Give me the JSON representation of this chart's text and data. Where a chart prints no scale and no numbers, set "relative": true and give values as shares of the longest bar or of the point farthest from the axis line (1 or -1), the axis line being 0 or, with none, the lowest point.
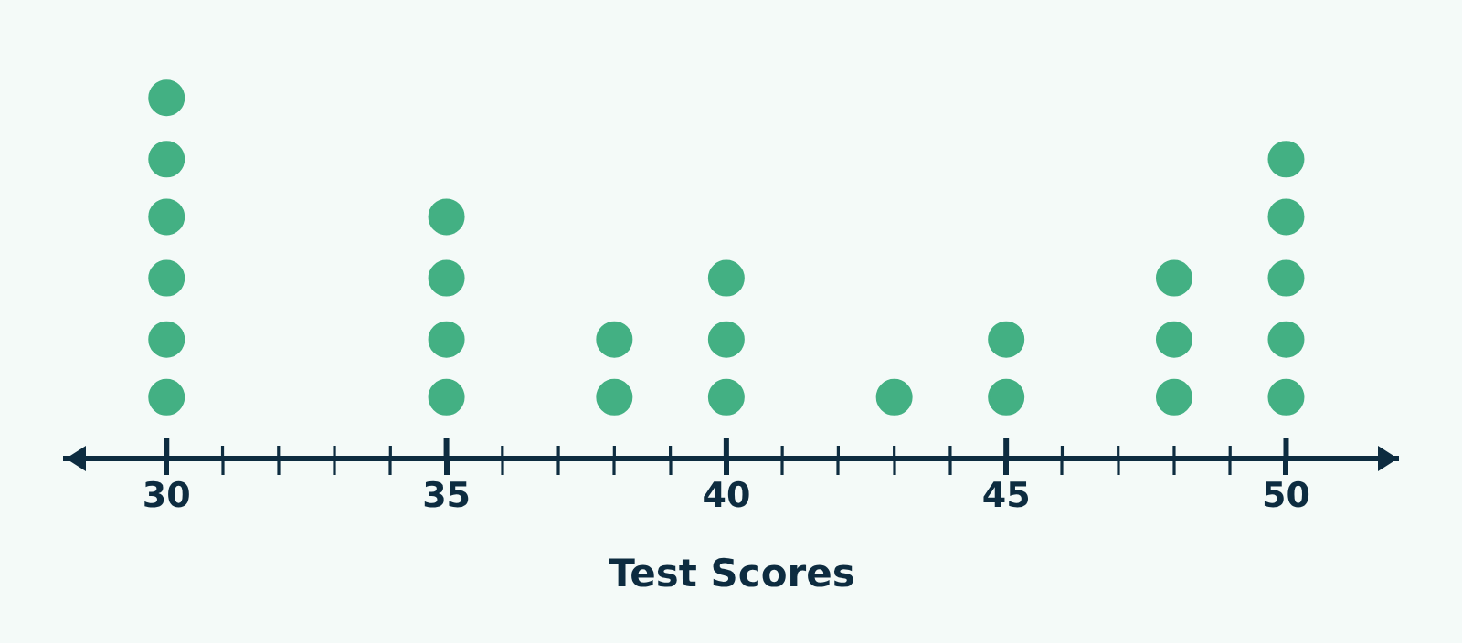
{
  "chart_data": {
    "type": "scatter",
    "xlabel": "Test Scores",
    "relative": true,
    "marker": "circle",
    "xlim": [
      28.2,
      52
    ],
    "xticks": [
      30,
      {
        "value": 31,
        "label": null
      },
      {
        "value": 32,
        "label": null
      },
      {
        "value": 33,
        "label": null
      },
      {
        "value": 34,
        "label": null
      },
      35,
      {
        "value": 36,
        "label": null
      },
      {
        "value": 37,
        "label": null
      },
      {
        "value": 38,
        "label": null
      },
      {
        "value": 39,
        "label": null
      },
      40,
      {
        "value": 41,
        "label": null
      },
      {
        "value": 42,
        "label": null
      },
      {
        "value": 43,
        "label": null
      },
      {
        "value": 44,
        "label": null
      },
      45,
      {
        "value": 46,
        "label": null
      },
      {
        "value": 47,
        "label": null
      },
      {
        "value": 48,
        "label": null
      },
      {
        "value": 49,
        "label": null
      },
      50
    ],
    "series": [
      {
        "color": "#43b083",
        "x": [
          30,
          30,
          30,
          30,
          30,
          30,
          35,
          35,
          35,
          35,
          38,
          38,
          40,
          40,
          40,
          43,
          45,
          45,
          48,
          48,
          48,
          50,
          50,
          50,
          50,
          50
        ],
        "values": [
          0.17,
          0.33,
          0.5,
          0.67,
          0.83,
          1,
          0.17,
          0.33,
          0.5,
          0.67,
          0.17,
          0.33,
          0.17,
          0.33,
          0.5,
          0.17,
          0.17,
          0.33,
          0.17,
          0.33,
          0.5,
          0.17,
          0.33,
          0.5,
          0.67,
          0.83
        ]
      }
    ]
  }
}
